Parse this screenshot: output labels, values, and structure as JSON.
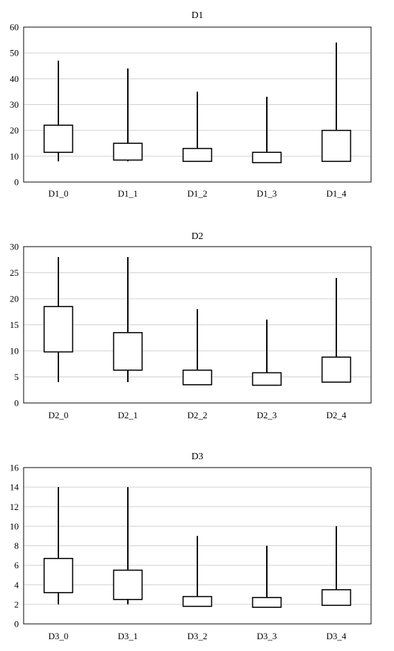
{
  "chart_data": [
    {
      "type": "box",
      "title": "D1",
      "ylim": [
        0,
        60
      ],
      "yticks": [
        0,
        10,
        20,
        30,
        40,
        50,
        60
      ],
      "grid": true,
      "categories": [
        "D1_0",
        "D1_1",
        "D1_2",
        "D1_3",
        "D1_4"
      ],
      "boxes": [
        {
          "min": 8,
          "q1": 11.5,
          "q3": 22,
          "max": 47
        },
        {
          "min": 8,
          "q1": 8.5,
          "q3": 15,
          "max": 44
        },
        {
          "min": 8,
          "q1": 8,
          "q3": 13,
          "max": 35
        },
        {
          "min": 7.5,
          "q1": 7.5,
          "q3": 11.5,
          "max": 33
        },
        {
          "min": 8,
          "q1": 8,
          "q3": 20,
          "max": 54
        }
      ]
    },
    {
      "type": "box",
      "title": "D2",
      "ylim": [
        0,
        30
      ],
      "yticks": [
        0,
        5,
        10,
        15,
        20,
        25,
        30
      ],
      "grid": true,
      "categories": [
        "D2_0",
        "D2_1",
        "D2_2",
        "D2_3",
        "D2_4"
      ],
      "boxes": [
        {
          "min": 4,
          "q1": 9.8,
          "q3": 18.5,
          "max": 28
        },
        {
          "min": 4,
          "q1": 6.3,
          "q3": 13.5,
          "max": 28
        },
        {
          "min": 3.5,
          "q1": 3.5,
          "q3": 6.3,
          "max": 18
        },
        {
          "min": 3.4,
          "q1": 3.4,
          "q3": 5.8,
          "max": 16
        },
        {
          "min": 4,
          "q1": 4,
          "q3": 8.8,
          "max": 24
        }
      ]
    },
    {
      "type": "box",
      "title": "D3",
      "ylim": [
        0,
        16
      ],
      "yticks": [
        0,
        2,
        4,
        6,
        8,
        10,
        12,
        14,
        16
      ],
      "grid": true,
      "categories": [
        "D3_0",
        "D3_1",
        "D3_2",
        "D3_3",
        "D3_4"
      ],
      "boxes": [
        {
          "min": 2,
          "q1": 3.2,
          "q3": 6.7,
          "max": 14
        },
        {
          "min": 2,
          "q1": 2.5,
          "q3": 5.5,
          "max": 14
        },
        {
          "min": 1.8,
          "q1": 1.8,
          "q3": 2.8,
          "max": 9
        },
        {
          "min": 1.7,
          "q1": 1.7,
          "q3": 2.7,
          "max": 8
        },
        {
          "min": 1.9,
          "q1": 1.9,
          "q3": 3.5,
          "max": 10
        }
      ]
    }
  ]
}
